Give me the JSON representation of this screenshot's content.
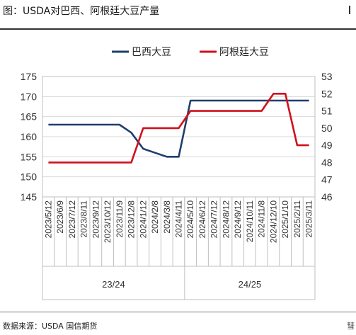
{
  "figure": {
    "title": "图：USDA对巴西、阿根廷大豆产量",
    "source": "数据来源：USDA 国信期货",
    "corner_glyph": "彗"
  },
  "chart_data": {
    "type": "line",
    "x": [
      "2023/5/12",
      "2023/6/9",
      "2023/7/12",
      "2023/8/11",
      "2023/9/12",
      "2023/10/12",
      "2023/11/9",
      "2023/12/8",
      "2024/1/12",
      "2024/2/8",
      "2024/3/8",
      "2024/4/11",
      "2024/5/10",
      "2024/6/12",
      "2024/7/12",
      "2024/8/12",
      "2024/9/12",
      "2024/10/11",
      "2024/11/8",
      "2024/12/10",
      "2025/1/10",
      "2025/2/11",
      "2025/3/11"
    ],
    "series": [
      {
        "name": "巴西大豆",
        "axis": "left",
        "color": "#1f3e6e",
        "values": [
          163,
          163,
          163,
          163,
          163,
          163,
          163,
          161,
          157,
          156,
          155,
          155,
          169,
          169,
          169,
          169,
          169,
          169,
          169,
          169,
          169,
          169,
          169
        ]
      },
      {
        "name": "阿根廷大豆",
        "axis": "right",
        "color": "#d0101c",
        "values": [
          48,
          48,
          48,
          48,
          48,
          48,
          48,
          48,
          50,
          50,
          50,
          50,
          51,
          51,
          51,
          51,
          51,
          51,
          51,
          52,
          52,
          49,
          49
        ]
      }
    ],
    "y_left": {
      "min": 145,
      "max": 175,
      "step": 5,
      "ticks": [
        "145",
        "150",
        "155",
        "160",
        "165",
        "170",
        "175"
      ]
    },
    "y_right": {
      "min": 46,
      "max": 53,
      "step": 1,
      "ticks": [
        "46",
        "47",
        "48",
        "49",
        "50",
        "51",
        "52",
        "53"
      ]
    },
    "groups": [
      {
        "label": "23/24",
        "from": 0,
        "to": 11
      },
      {
        "label": "24/25",
        "from": 12,
        "to": 22
      }
    ],
    "legend_position": "top",
    "grid": true
  }
}
